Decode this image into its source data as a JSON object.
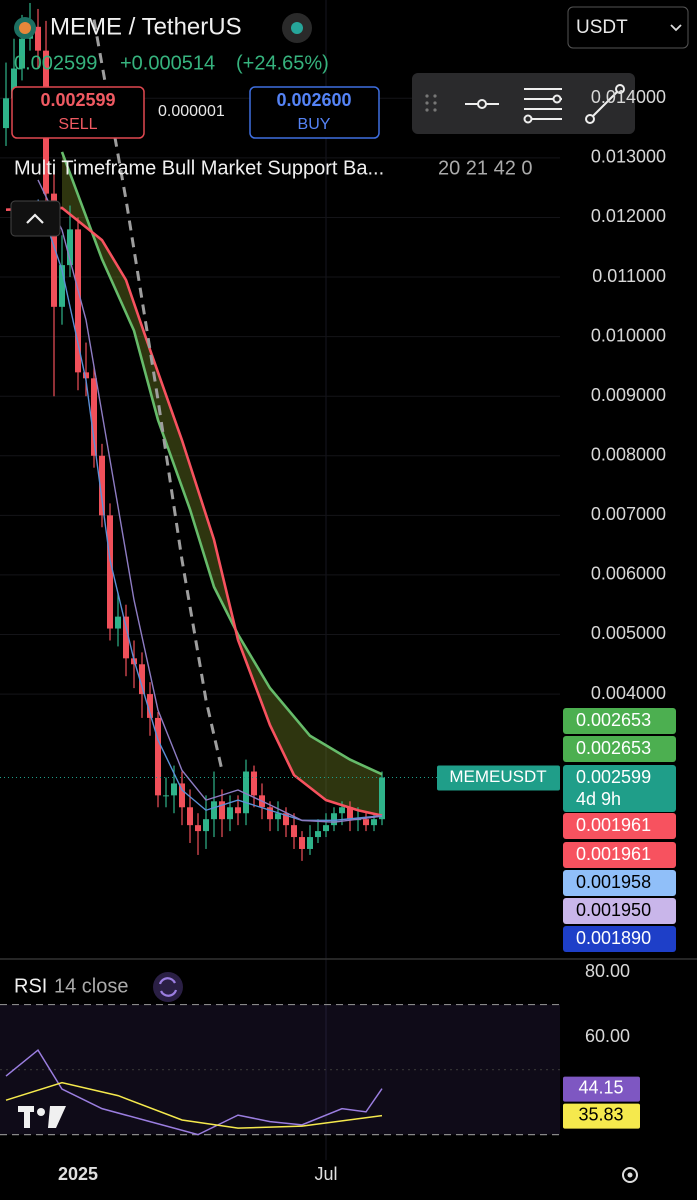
{
  "header": {
    "symbol": "MEME / TetherUS",
    "quote_currency": "USDT",
    "last": "0.002599",
    "change": "+0.000514",
    "change_pct": "(+24.65%)"
  },
  "trade": {
    "sell_price": "0.002599",
    "sell": "SELL",
    "spread": "0.000001",
    "buy_price": "0.002600",
    "buy": "BUY"
  },
  "indicator": {
    "name": "Multi Timeframe Bull Market Support Ba...",
    "params": "20 21 42 0"
  },
  "chart_data": [
    {
      "type": "candlestick",
      "categories": [
        null,
        null,
        null,
        null,
        null,
        null,
        null,
        null,
        null,
        "2025",
        null,
        null,
        null,
        null,
        null,
        null,
        null,
        null,
        null,
        null,
        null,
        null,
        null,
        null,
        null,
        null,
        null,
        null,
        null,
        null,
        null,
        null,
        null,
        null,
        null,
        null,
        null,
        null,
        null,
        null,
        "Jul",
        null,
        null,
        null,
        null,
        null,
        null,
        null
      ],
      "open": [
        0.0135,
        0.014,
        0.0145,
        0.015,
        0.0152,
        0.0148,
        0.0124,
        0.0105,
        0.0112,
        0.0118,
        0.0094,
        0.0093,
        0.008,
        0.007,
        0.0051,
        0.0053,
        0.0046,
        0.0045,
        0.004,
        0.0036,
        0.0023,
        0.0023,
        0.0025,
        0.0021,
        0.0018,
        0.0017,
        0.0019,
        0.0022,
        0.0019,
        0.0021,
        0.002,
        0.0027,
        0.0023,
        0.0021,
        0.0019,
        0.002,
        0.0018,
        0.0016,
        0.0014,
        0.0016,
        0.0017,
        0.0018,
        0.002,
        0.0021,
        0.0019,
        0.0019,
        0.0018,
        0.0019
      ],
      "high": [
        0.0146,
        0.015,
        0.0154,
        0.0156,
        0.0155,
        0.0153,
        0.0128,
        0.0117,
        0.0122,
        0.012,
        0.0099,
        0.0095,
        0.0082,
        0.0072,
        0.0057,
        0.0055,
        0.0049,
        0.0047,
        0.0042,
        0.0037,
        0.0026,
        0.0028,
        0.0027,
        0.0024,
        0.002,
        0.0023,
        0.0027,
        0.0024,
        0.0023,
        0.0023,
        0.0029,
        0.0028,
        0.0025,
        0.0022,
        0.0022,
        0.0021,
        0.002,
        0.0017,
        0.0018,
        0.0019,
        0.002,
        0.0021,
        0.0022,
        0.0022,
        0.0021,
        0.002,
        0.002,
        0.0027
      ],
      "low": [
        0.0132,
        0.0138,
        0.0143,
        0.0148,
        0.0145,
        0.012,
        0.009,
        0.0102,
        0.011,
        0.0091,
        0.009,
        0.0078,
        0.0068,
        0.0049,
        0.0048,
        0.0043,
        0.0041,
        0.0036,
        0.0033,
        0.0021,
        0.0021,
        0.002,
        0.0018,
        0.0015,
        0.0013,
        0.0014,
        0.0016,
        0.0016,
        0.0017,
        0.0018,
        0.0018,
        0.0021,
        0.0019,
        0.0017,
        0.0017,
        0.0016,
        0.0014,
        0.0012,
        0.0013,
        0.0015,
        0.0016,
        0.0017,
        0.0018,
        0.0017,
        0.0017,
        0.0017,
        0.0017,
        0.0018
      ],
      "close": [
        0.014,
        0.0145,
        0.015,
        0.0152,
        0.0148,
        0.0124,
        0.0105,
        0.0112,
        0.0118,
        0.0094,
        0.0093,
        0.008,
        0.007,
        0.0051,
        0.0053,
        0.0046,
        0.0045,
        0.004,
        0.0036,
        0.0023,
        0.0023,
        0.0025,
        0.0021,
        0.0018,
        0.0017,
        0.0019,
        0.0022,
        0.0019,
        0.0021,
        0.002,
        0.0027,
        0.0023,
        0.0021,
        0.0019,
        0.002,
        0.0018,
        0.0016,
        0.0014,
        0.0016,
        0.0017,
        0.0018,
        0.002,
        0.0021,
        0.0019,
        0.0019,
        0.0018,
        0.0019,
        0.002599
      ],
      "up_color": "#2fb38a",
      "down_color": "#f0505a",
      "series": [
        {
          "color": "#66bb6a",
          "x": [
            7,
            12,
            16,
            19,
            23,
            26,
            29,
            33,
            38,
            43,
            47
          ],
          "values": [
            0.0131,
            0.0113,
            0.0101,
            0.0086,
            0.0071,
            0.0058,
            0.005,
            0.0041,
            0.0033,
            0.0029,
            0.002653
          ]
        },
        {
          "color": "#f7525f",
          "x": [
            0,
            7,
            12,
            15,
            18,
            22,
            26,
            29,
            33,
            36,
            40,
            44,
            47
          ],
          "values": [
            0.01213,
            0.01216,
            0.01162,
            0.01095,
            0.00978,
            0.00826,
            0.00659,
            0.00491,
            0.00348,
            0.00264,
            0.00222,
            0.00205,
            0.001961
          ]
        },
        {
          "color": "#9e9e9e",
          "style": "dashed",
          "x": [
            11,
            15,
            19,
            22,
            25,
            27
          ],
          "values": [
            0.01532,
            0.0123,
            0.00894,
            0.00625,
            0.0039,
            0.00272
          ]
        },
        {
          "color": "#5b8fd6",
          "x": [
            4,
            7,
            10,
            13,
            16,
            19,
            22,
            25,
            29,
            33,
            37,
            41,
            47
          ],
          "values": [
            0.0123,
            0.01112,
            0.00927,
            0.00625,
            0.00457,
            0.00323,
            0.00239,
            0.00205,
            0.00222,
            0.00205,
            0.00188,
            0.00188,
            0.001958
          ]
        },
        {
          "color": "#8e7cc3",
          "x": [
            4,
            7,
            10,
            13,
            16,
            19,
            22,
            25,
            29,
            33,
            37,
            41,
            47
          ],
          "values": [
            0.01263,
            0.01179,
            0.01028,
            0.00793,
            0.00558,
            0.00373,
            0.00272,
            0.00222,
            0.00239,
            0.00214,
            0.00188,
            0.00185,
            0.00195
          ]
        }
      ],
      "ylim": [
        -0.00043,
        0.01565
      ],
      "yticks": [
        {
          "value": 0.014,
          "label": "0.014000"
        },
        {
          "value": 0.013,
          "label": "0.013000"
        },
        {
          "value": 0.012,
          "label": "0.012000"
        },
        {
          "value": 0.011,
          "label": "0.011000"
        },
        {
          "value": 0.01,
          "label": "0.010000"
        },
        {
          "value": 0.009,
          "label": "0.009000"
        },
        {
          "value": 0.008,
          "label": "0.008000"
        },
        {
          "value": 0.007,
          "label": "0.007000"
        },
        {
          "value": 0.006,
          "label": "0.006000"
        },
        {
          "value": 0.005,
          "label": "0.005000"
        },
        {
          "value": 0.004,
          "label": "0.004000"
        }
      ],
      "grid": true,
      "price_line": {
        "symbol": "MEMEUSDT",
        "value": 0.002599,
        "countdown": "4d 9h",
        "color": "#1f9e89"
      },
      "price_labels": [
        0.002653,
        0.002653,
        0.001961,
        0.001961,
        0.001958,
        {
          "value": 0.00195,
          "label": "0.001950"
        },
        {
          "value": 0.00189,
          "label": "0.001890"
        }
      ],
      "price_label_colors": [
        "#4caf50",
        "#4caf50",
        "#f7525f",
        "#f7525f",
        "#90bff9",
        "#c9b6ea",
        "#1e3fc8"
      ]
    },
    {
      "type": "line",
      "title": "RSI",
      "subtitle": "14 close",
      "ylim": [
        22.2,
        83.7
      ],
      "yticks": [
        {
          "value": 80,
          "label": "80.00"
        },
        {
          "value": 60,
          "label": "60.00"
        }
      ],
      "levels": [
        70,
        50,
        30
      ],
      "series": [
        {
          "color": "#9b7ee0",
          "x": [
            0,
            4,
            7,
            12,
            18,
            24,
            29,
            33,
            37,
            42,
            45,
            47
          ],
          "values": [
            48,
            56,
            44,
            38,
            34,
            30,
            36,
            34,
            33,
            38,
            37,
            44.15
          ]
        },
        {
          "color": "#f5e94d",
          "x": [
            0,
            7,
            14,
            22,
            29,
            37,
            47
          ],
          "values": [
            40.6,
            46,
            42,
            34.5,
            32,
            32.6,
            35.83
          ]
        }
      ]
    }
  ]
}
